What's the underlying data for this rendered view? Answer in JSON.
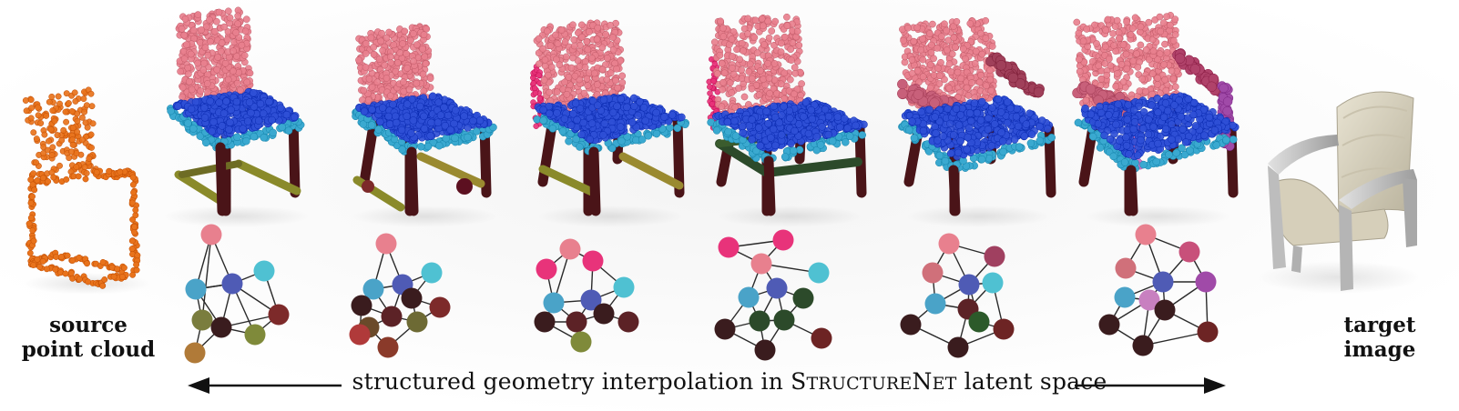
{
  "labels": {
    "source_line1": "source",
    "source_line2": "point cloud",
    "target_line1": "target",
    "target_line2": "image"
  },
  "caption": {
    "prefix": "structured geometry interpolation in ",
    "name_cap1": "S",
    "name_small1": "TRUCTURE",
    "name_cap2": "N",
    "name_small2": "ET",
    "suffix": " latent space"
  },
  "colors": {
    "source_points": "#e8731c",
    "back": "#e8808e",
    "seat": "#2f4fd6",
    "seat_frame": "#3aa9d0",
    "leg_dark": "#4a1418",
    "base_olive": "#8a8a2a",
    "arm": "#c8607a",
    "arm_purple": "#a04aa8",
    "target_chair_fabric": "#d8d2bf",
    "target_chair_frame": "#c8c8c8"
  },
  "graphs": [
    {
      "nodes": [
        "#e8808e",
        "#4f5bb5",
        "#4fc1d2",
        "#4aa3c8",
        "#7a7d3e",
        "#3a1c1e",
        "#7d2a2a",
        "#7f8a3a",
        "#b07a38"
      ]
    },
    {
      "nodes": [
        "#e8808e",
        "#4f5bb5",
        "#4fc1d2",
        "#4aa3c8",
        "#3a1c1e",
        "#5c2226",
        "#3a1c1e",
        "#6d6a34",
        "#7d2a2a",
        "#6a4a2a",
        "#b03a3a",
        "#8a3a2a"
      ]
    },
    {
      "nodes": [
        "#e8808e",
        "#e8337a",
        "#e8337a",
        "#4fc1d2",
        "#4aa3c8",
        "#4f5bb5",
        "#3a1c1e",
        "#5c2226",
        "#3a1c1e",
        "#7f8a3a",
        "#5c2226"
      ]
    },
    {
      "nodes": [
        "#e8337a",
        "#e8337a",
        "#e8808e",
        "#4fc1d2",
        "#4f5bb5",
        "#4aa3c8",
        "#2c4a2a",
        "#2c4a2a",
        "#2c4a2a",
        "#3a1c1e",
        "#3a1c1e",
        "#6d2424"
      ]
    },
    {
      "nodes": [
        "#e8808e",
        "#a04060",
        "#d0707a",
        "#4f5bb5",
        "#4fc1d2",
        "#4aa3c8",
        "#5c2226",
        "#2c5a2a",
        "#3a1c1e",
        "#3a1c1e",
        "#6d2424"
      ]
    },
    {
      "nodes": [
        "#e8808e",
        "#c8507a",
        "#d0707a",
        "#4f5bb5",
        "#a04aa8",
        "#4aa3c8",
        "#c880c0",
        "#3a1c1e",
        "#3a1c1e",
        "#3a1c1e",
        "#6d2424"
      ]
    }
  ]
}
